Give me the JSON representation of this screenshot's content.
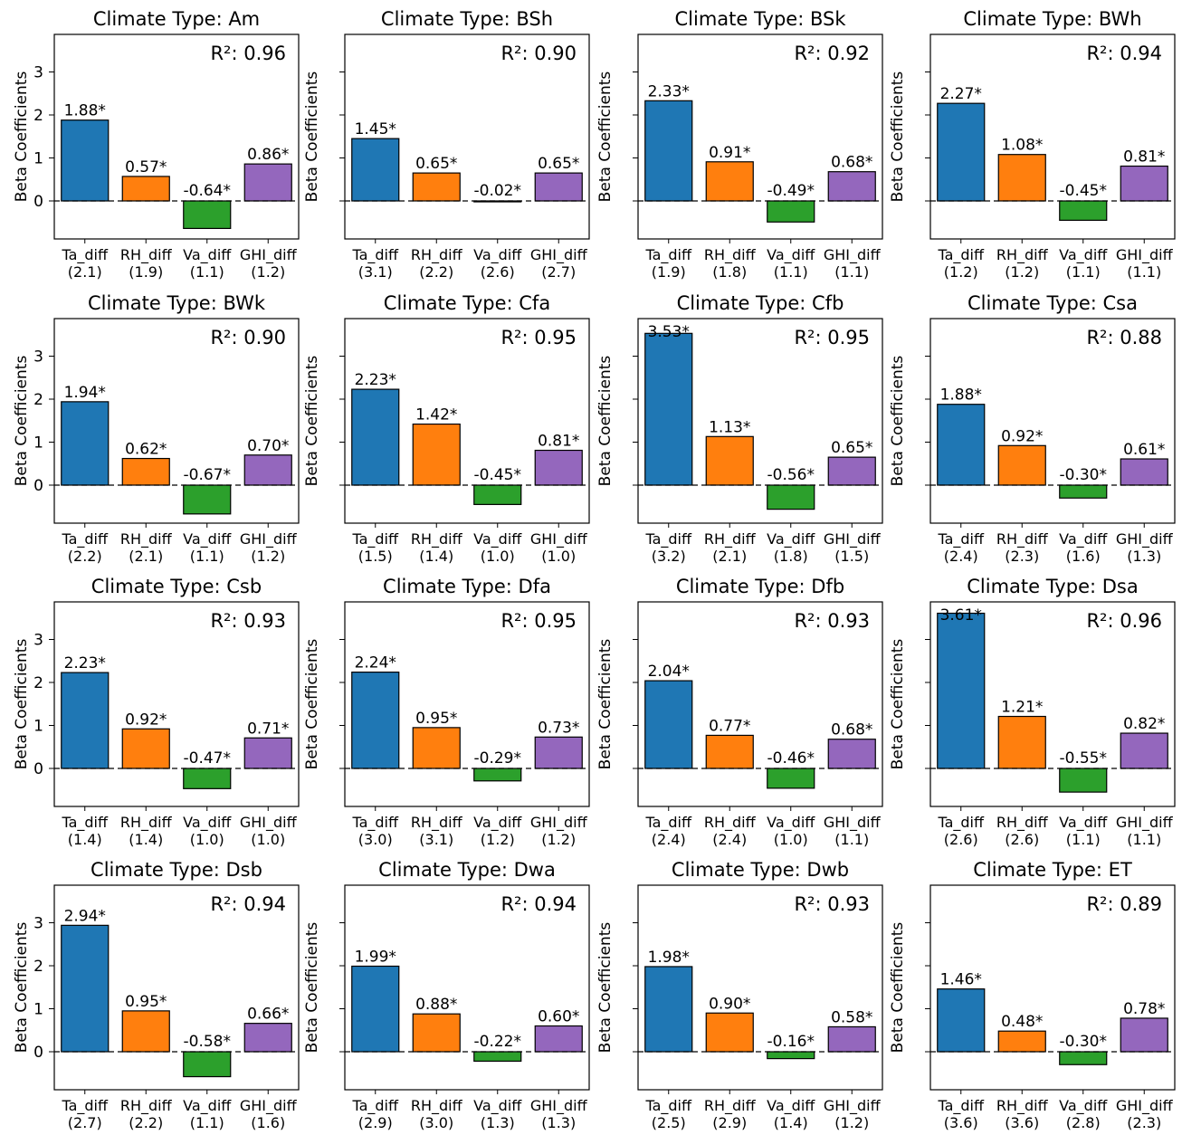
{
  "chart_data": {
    "type": "bar",
    "categories": [
      "Ta_diff",
      "RH_diff",
      "Va_diff",
      "GHI_diff"
    ],
    "colors": [
      "#1f77b4",
      "#ff7f0e",
      "#2ca02c",
      "#9467bd"
    ],
    "ylabel": "Beta Coefficients",
    "yticks": [
      0,
      1,
      2,
      3
    ],
    "ylim": [
      -0.9,
      3.7
    ],
    "grid": false,
    "zero_line": "dashed",
    "panels": [
      {
        "title": "Climate Type: Am",
        "r2": "R²: 0.96",
        "values": [
          1.88,
          0.57,
          -0.64,
          0.86
        ],
        "labels": [
          "1.88*",
          "0.57*",
          "-0.64*",
          "0.86*"
        ],
        "vif": [
          "(2.1)",
          "(1.9)",
          "(1.1)",
          "(1.2)"
        ]
      },
      {
        "title": "Climate Type: BSh",
        "r2": "R²: 0.90",
        "values": [
          1.45,
          0.65,
          -0.02,
          0.65
        ],
        "labels": [
          "1.45*",
          "0.65*",
          "-0.02*",
          "0.65*"
        ],
        "vif": [
          "(3.1)",
          "(2.2)",
          "(2.6)",
          "(2.7)"
        ]
      },
      {
        "title": "Climate Type: BSk",
        "r2": "R²: 0.92",
        "values": [
          2.33,
          0.91,
          -0.49,
          0.68
        ],
        "labels": [
          "2.33*",
          "0.91*",
          "-0.49*",
          "0.68*"
        ],
        "vif": [
          "(1.9)",
          "(1.8)",
          "(1.1)",
          "(1.1)"
        ]
      },
      {
        "title": "Climate Type: BWh",
        "r2": "R²: 0.94",
        "values": [
          2.27,
          1.08,
          -0.45,
          0.81
        ],
        "labels": [
          "2.27*",
          "1.08*",
          "-0.45*",
          "0.81*"
        ],
        "vif": [
          "(1.2)",
          "(1.2)",
          "(1.1)",
          "(1.1)"
        ]
      },
      {
        "title": "Climate Type: BWk",
        "r2": "R²: 0.90",
        "values": [
          1.94,
          0.62,
          -0.67,
          0.7
        ],
        "labels": [
          "1.94*",
          "0.62*",
          "-0.67*",
          "0.70*"
        ],
        "vif": [
          "(2.2)",
          "(2.1)",
          "(1.1)",
          "(1.2)"
        ]
      },
      {
        "title": "Climate Type: Cfa",
        "r2": "R²: 0.95",
        "values": [
          2.23,
          1.42,
          -0.45,
          0.81
        ],
        "labels": [
          "2.23*",
          "1.42*",
          "-0.45*",
          "0.81*"
        ],
        "vif": [
          "(1.5)",
          "(1.4)",
          "(1.0)",
          "(1.0)"
        ]
      },
      {
        "title": "Climate Type: Cfb",
        "r2": "R²: 0.95",
        "values": [
          3.53,
          1.13,
          -0.56,
          0.65
        ],
        "labels": [
          "3.53*",
          "1.13*",
          "-0.56*",
          "0.65*"
        ],
        "vif": [
          "(3.2)",
          "(2.1)",
          "(1.8)",
          "(1.5)"
        ]
      },
      {
        "title": "Climate Type: Csa",
        "r2": "R²: 0.88",
        "values": [
          1.88,
          0.92,
          -0.3,
          0.61
        ],
        "labels": [
          "1.88*",
          "0.92*",
          "-0.30*",
          "0.61*"
        ],
        "vif": [
          "(2.4)",
          "(2.3)",
          "(1.6)",
          "(1.3)"
        ]
      },
      {
        "title": "Climate Type: Csb",
        "r2": "R²: 0.93",
        "values": [
          2.23,
          0.92,
          -0.47,
          0.71
        ],
        "labels": [
          "2.23*",
          "0.92*",
          "-0.47*",
          "0.71*"
        ],
        "vif": [
          "(1.4)",
          "(1.4)",
          "(1.0)",
          "(1.0)"
        ]
      },
      {
        "title": "Climate Type: Dfa",
        "r2": "R²: 0.95",
        "values": [
          2.24,
          0.95,
          -0.29,
          0.73
        ],
        "labels": [
          "2.24*",
          "0.95*",
          "-0.29*",
          "0.73*"
        ],
        "vif": [
          "(3.0)",
          "(3.1)",
          "(1.2)",
          "(1.2)"
        ]
      },
      {
        "title": "Climate Type: Dfb",
        "r2": "R²: 0.93",
        "values": [
          2.04,
          0.77,
          -0.46,
          0.68
        ],
        "labels": [
          "2.04*",
          "0.77*",
          "-0.46*",
          "0.68*"
        ],
        "vif": [
          "(2.4)",
          "(2.4)",
          "(1.0)",
          "(1.1)"
        ]
      },
      {
        "title": "Climate Type: Dsa",
        "r2": "R²: 0.96",
        "values": [
          3.61,
          1.21,
          -0.55,
          0.82
        ],
        "labels": [
          "3.61*",
          "1.21*",
          "-0.55*",
          "0.82*"
        ],
        "vif": [
          "(2.6)",
          "(2.6)",
          "(1.1)",
          "(1.1)"
        ]
      },
      {
        "title": "Climate Type: Dsb",
        "r2": "R²: 0.94",
        "values": [
          2.94,
          0.95,
          -0.58,
          0.66
        ],
        "labels": [
          "2.94*",
          "0.95*",
          "-0.58*",
          "0.66*"
        ],
        "vif": [
          "(2.7)",
          "(2.2)",
          "(1.1)",
          "(1.6)"
        ]
      },
      {
        "title": "Climate Type: Dwa",
        "r2": "R²: 0.94",
        "values": [
          1.99,
          0.88,
          -0.22,
          0.6
        ],
        "labels": [
          "1.99*",
          "0.88*",
          "-0.22*",
          "0.60*"
        ],
        "vif": [
          "(2.9)",
          "(3.0)",
          "(1.3)",
          "(1.3)"
        ]
      },
      {
        "title": "Climate Type: Dwb",
        "r2": "R²: 0.93",
        "values": [
          1.98,
          0.9,
          -0.16,
          0.58
        ],
        "labels": [
          "1.98*",
          "0.90*",
          "-0.16*",
          "0.58*"
        ],
        "vif": [
          "(2.5)",
          "(2.9)",
          "(1.4)",
          "(1.2)"
        ]
      },
      {
        "title": "Climate Type: ET",
        "r2": "R²: 0.89",
        "values": [
          1.46,
          0.48,
          -0.3,
          0.78
        ],
        "labels": [
          "1.46*",
          "0.48*",
          "-0.30*",
          "0.78*"
        ],
        "vif": [
          "(3.6)",
          "(3.6)",
          "(2.8)",
          "(2.3)"
        ]
      }
    ]
  }
}
